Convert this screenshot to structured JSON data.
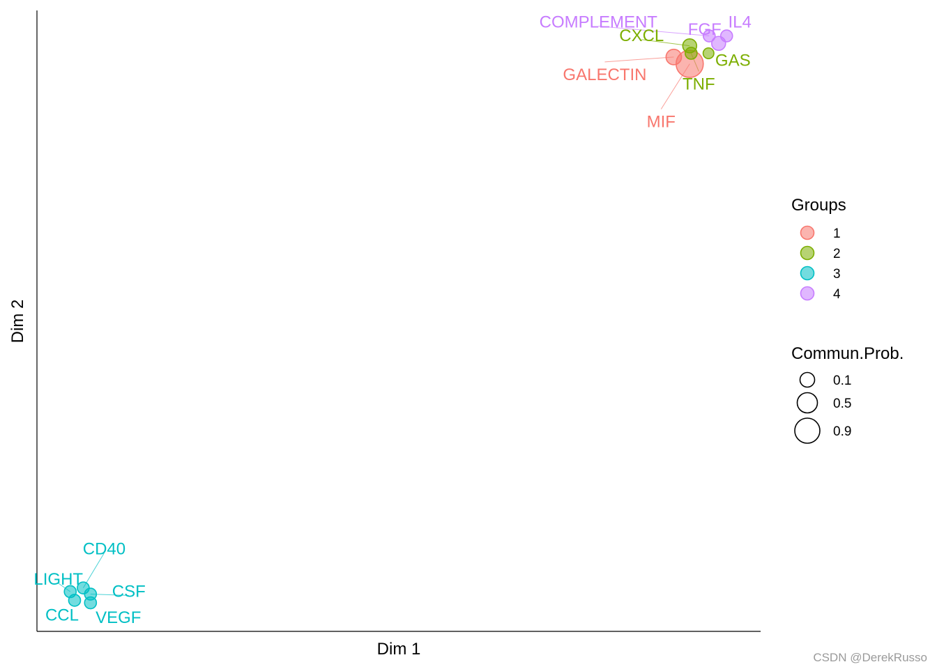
{
  "chart_data": {
    "type": "scatter",
    "xlabel": "Dim 1",
    "ylabel": "Dim 2",
    "xlim": [
      0,
      100
    ],
    "ylim": [
      0,
      100
    ],
    "grid": false,
    "legend_position": "right",
    "groups": [
      {
        "name": "1",
        "color": "#F8766D"
      },
      {
        "name": "2",
        "color": "#7CAE00"
      },
      {
        "name": "3",
        "color": "#00BFC4"
      },
      {
        "name": "4",
        "color": "#C77CFF"
      }
    ],
    "size_legend": {
      "title": "Commun.Prob.",
      "values": [
        0.1,
        0.5,
        0.9
      ],
      "labels": [
        "0.1",
        "0.5",
        "0.9"
      ]
    },
    "groups_legend_title": "Groups",
    "points": [
      {
        "label": "MIF",
        "group": "1",
        "x": 90.2,
        "y": 91.4,
        "prob": 0.9
      },
      {
        "label": "GALECTIN",
        "group": "1",
        "x": 88.0,
        "y": 92.5,
        "prob": 0.2
      },
      {
        "label": "CXCL",
        "group": "2",
        "x": 90.2,
        "y": 94.3,
        "prob": 0.15
      },
      {
        "label": "TNF",
        "group": "2",
        "x": 90.4,
        "y": 93.1,
        "prob": 0.1
      },
      {
        "label": "GAS",
        "group": "2",
        "x": 92.8,
        "y": 93.1,
        "prob": 0.08
      },
      {
        "label": "COMPLEMENT",
        "group": "4",
        "x": 92.9,
        "y": 95.9,
        "prob": 0.1
      },
      {
        "label": "FGF",
        "group": "4",
        "x": 94.2,
        "y": 94.7,
        "prob": 0.15
      },
      {
        "label": "IL4",
        "group": "4",
        "x": 95.3,
        "y": 95.9,
        "prob": 0.1
      },
      {
        "label": "CD40",
        "group": "3",
        "x": 6.4,
        "y": 7.0,
        "prob": 0.1
      },
      {
        "label": "LIGHT",
        "group": "3",
        "x": 4.6,
        "y": 6.4,
        "prob": 0.1
      },
      {
        "label": "CSF",
        "group": "3",
        "x": 7.4,
        "y": 6.0,
        "prob": 0.1
      },
      {
        "label": "CCL",
        "group": "3",
        "x": 5.2,
        "y": 5.0,
        "prob": 0.1
      },
      {
        "label": "VEGF",
        "group": "3",
        "x": 7.4,
        "y": 4.6,
        "prob": 0.1
      }
    ]
  },
  "watermark": "CSDN @DerekRusso"
}
